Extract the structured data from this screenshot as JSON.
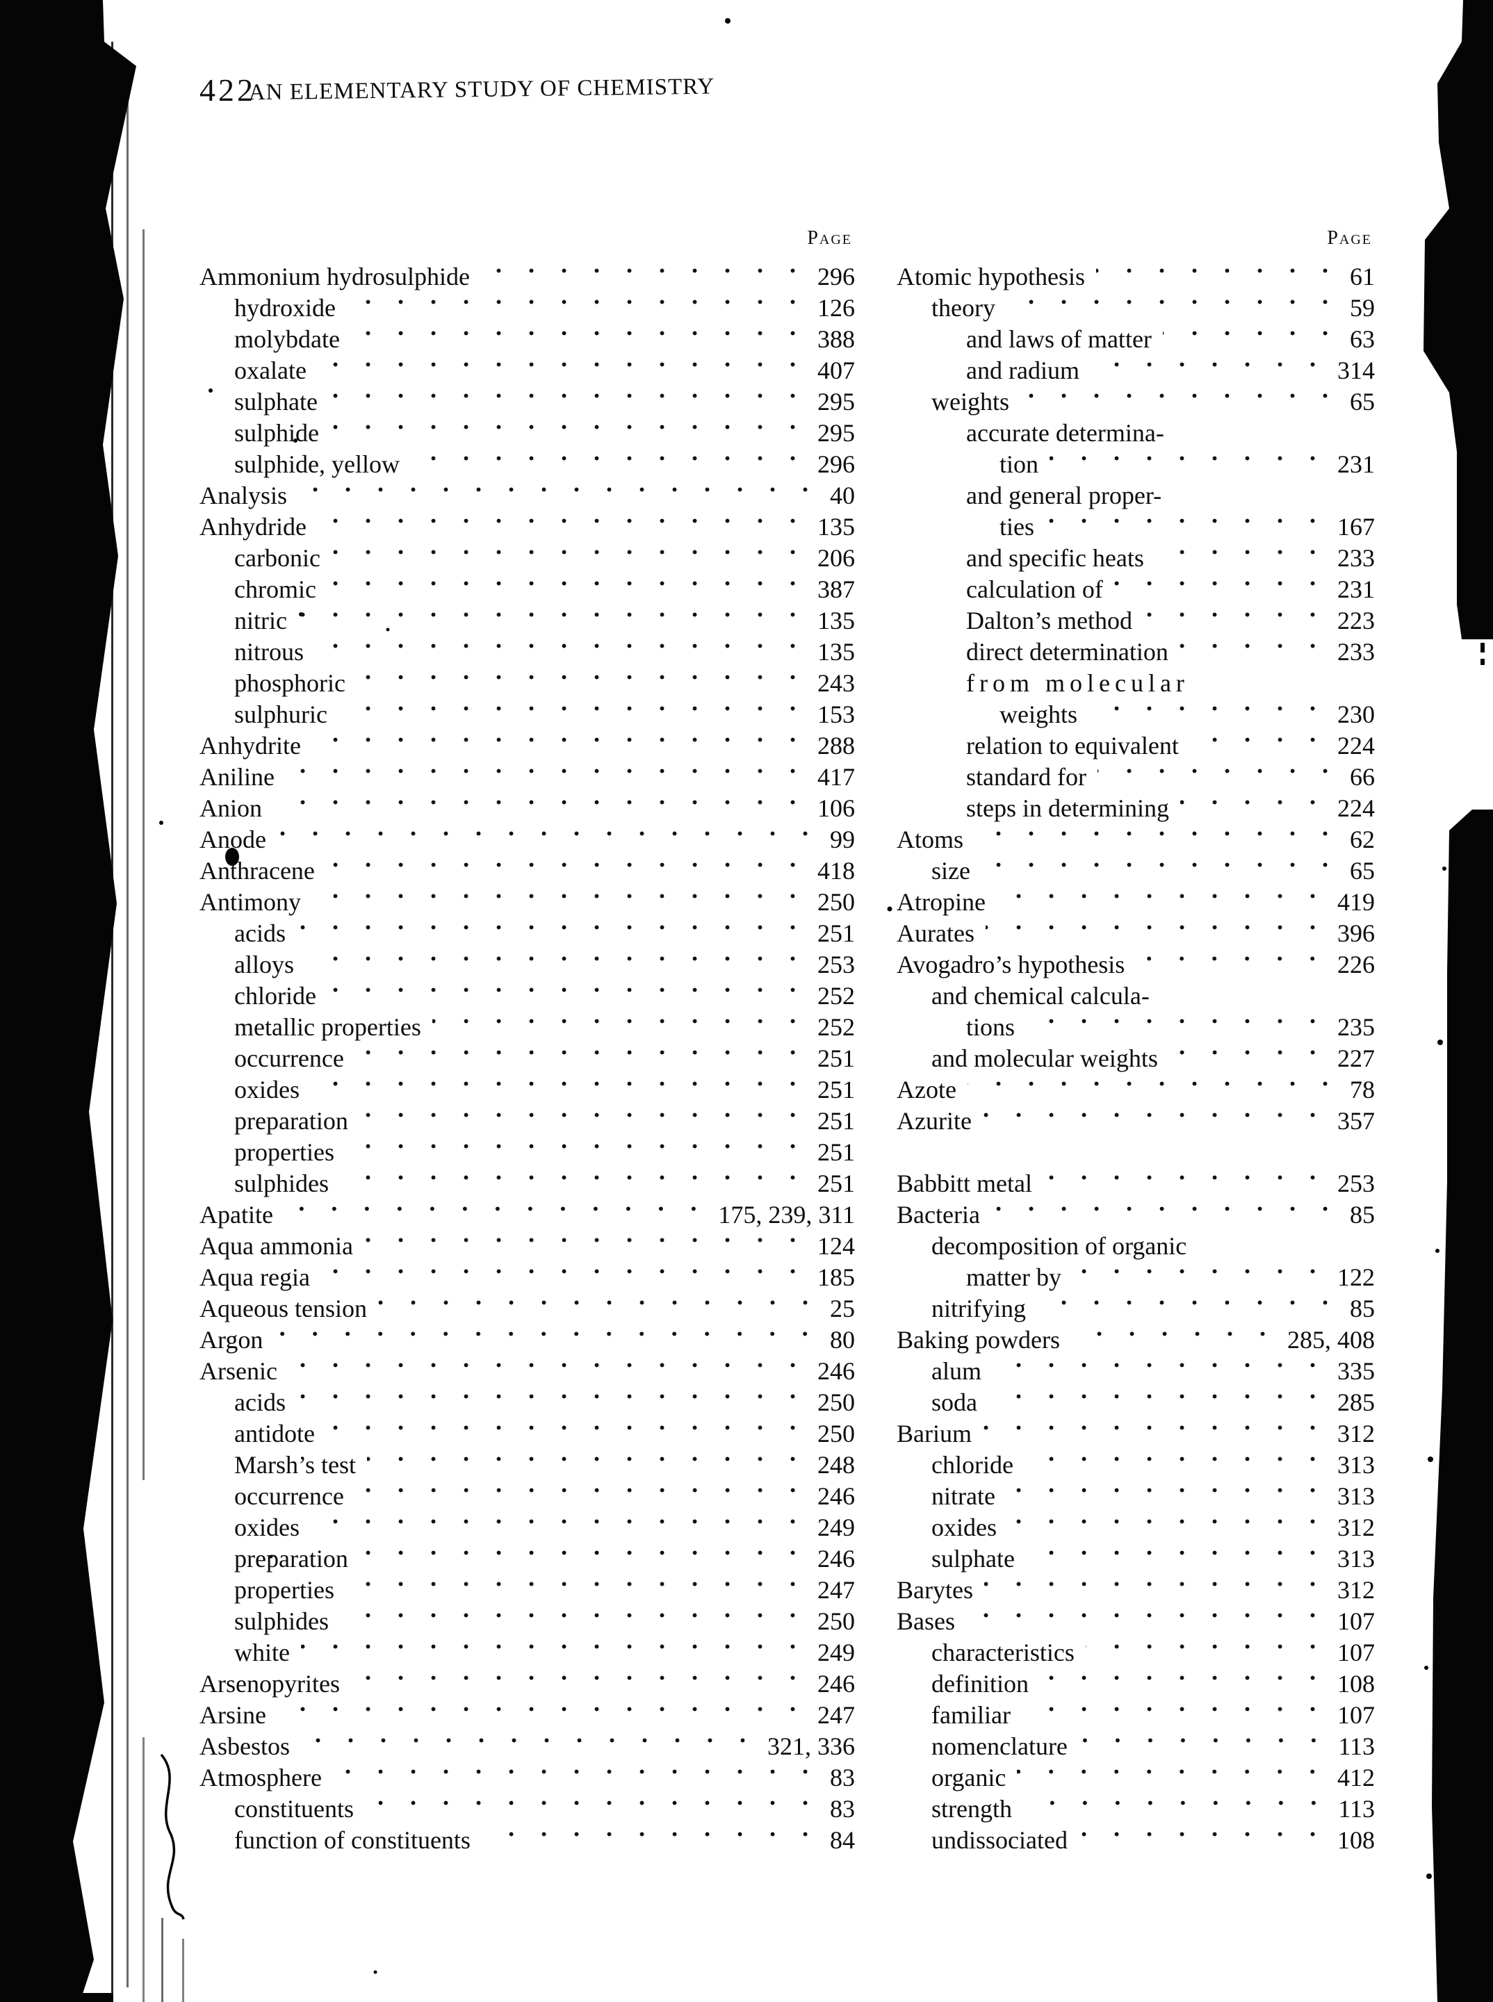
{
  "colors": {
    "ink": "#0d0d0d",
    "paper": "#ffffff"
  },
  "page": {
    "number": "422",
    "title": "AN ELEMENTARY STUDY OF CHEMISTRY"
  },
  "columns": [
    {
      "page_label": "Page",
      "entries": [
        {
          "label": "Ammonium hydrosulphide",
          "indent": 0,
          "page": "296"
        },
        {
          "label": "hydroxide",
          "indent": 1,
          "page": "126"
        },
        {
          "label": "molybdate",
          "indent": 1,
          "page": "388"
        },
        {
          "label": "oxalate",
          "indent": 1,
          "page": "407"
        },
        {
          "label": "sulphate",
          "indent": 1,
          "page": "295"
        },
        {
          "label": "sulphide",
          "indent": 1,
          "page": "295"
        },
        {
          "label": "sulphide, yellow",
          "indent": 1,
          "page": "296"
        },
        {
          "label": "Analysis",
          "indent": 0,
          "page": "40"
        },
        {
          "label": "Anhydride",
          "indent": 0,
          "page": "135"
        },
        {
          "label": "carbonic",
          "indent": 1,
          "page": "206"
        },
        {
          "label": "chromic",
          "indent": 1,
          "page": "387"
        },
        {
          "label": "nitric",
          "indent": 1,
          "page": "135"
        },
        {
          "label": "nitrous",
          "indent": 1,
          "page": "135"
        },
        {
          "label": "phosphoric",
          "indent": 1,
          "page": "243"
        },
        {
          "label": "sulphuric",
          "indent": 1,
          "page": "153"
        },
        {
          "label": "Anhydrite",
          "indent": 0,
          "page": "288"
        },
        {
          "label": "Aniline",
          "indent": 0,
          "page": "417"
        },
        {
          "label": "Anion",
          "indent": 0,
          "page": "106"
        },
        {
          "label": "Anode",
          "indent": 0,
          "page": "99"
        },
        {
          "label": "Anthracene",
          "indent": 0,
          "page": "418"
        },
        {
          "label": "Antimony",
          "indent": 0,
          "page": "250"
        },
        {
          "label": "acids",
          "indent": 1,
          "page": "251"
        },
        {
          "label": "alloys",
          "indent": 1,
          "page": "253"
        },
        {
          "label": "chloride",
          "indent": 1,
          "page": "252"
        },
        {
          "label": "metallic properties",
          "indent": 1,
          "page": "252"
        },
        {
          "label": "occurrence",
          "indent": 1,
          "page": "251"
        },
        {
          "label": "oxides",
          "indent": 1,
          "page": "251"
        },
        {
          "label": "preparation",
          "indent": 1,
          "page": "251"
        },
        {
          "label": "properties",
          "indent": 1,
          "page": "251"
        },
        {
          "label": "sulphides",
          "indent": 1,
          "page": "251"
        },
        {
          "label": "Apatite",
          "indent": 0,
          "page": "175, 239, 311"
        },
        {
          "label": "Aqua ammonia",
          "indent": 0,
          "page": "124"
        },
        {
          "label": "Aqua regia",
          "indent": 0,
          "page": "185"
        },
        {
          "label": "Aqueous tension",
          "indent": 0,
          "page": "25"
        },
        {
          "label": "Argon",
          "indent": 0,
          "page": "80"
        },
        {
          "label": "Arsenic",
          "indent": 0,
          "page": "246"
        },
        {
          "label": "acids",
          "indent": 1,
          "page": "250"
        },
        {
          "label": "antidote",
          "indent": 1,
          "page": "250"
        },
        {
          "label": "Marsh’s test",
          "indent": 1,
          "page": "248"
        },
        {
          "label": "occurrence",
          "indent": 1,
          "page": "246"
        },
        {
          "label": "oxides",
          "indent": 1,
          "page": "249"
        },
        {
          "label": "preparation",
          "indent": 1,
          "page": "246"
        },
        {
          "label": "properties",
          "indent": 1,
          "page": "247"
        },
        {
          "label": "sulphides",
          "indent": 1,
          "page": "250"
        },
        {
          "label": "white",
          "indent": 1,
          "page": "249"
        },
        {
          "label": "Arsenopyrites",
          "indent": 0,
          "page": "246"
        },
        {
          "label": "Arsine",
          "indent": 0,
          "page": "247"
        },
        {
          "label": "Asbestos",
          "indent": 0,
          "page": "321, 336"
        },
        {
          "label": "Atmosphere",
          "indent": 0,
          "page": "83"
        },
        {
          "label": "constituents",
          "indent": 1,
          "page": "83"
        },
        {
          "label": "function of constituents",
          "indent": 1,
          "page": "84"
        }
      ]
    },
    {
      "page_label": "Page",
      "entries": [
        {
          "label": "Atomic hypothesis",
          "indent": 0,
          "page": "61"
        },
        {
          "label": "theory",
          "indent": 1,
          "page": "59"
        },
        {
          "label": "and laws of matter",
          "indent": 2,
          "page": "63"
        },
        {
          "label": "and radium",
          "indent": 2,
          "page": "314"
        },
        {
          "label": "weights",
          "indent": 1,
          "page": "65"
        },
        {
          "label": "accurate determina-",
          "indent": 2,
          "page": "",
          "leader": false
        },
        {
          "label": "tion",
          "indent": 3,
          "page": "231"
        },
        {
          "label": "and general proper-",
          "indent": 2,
          "page": "",
          "leader": false
        },
        {
          "label": "ties",
          "indent": 3,
          "page": "167"
        },
        {
          "label": "and specific heats",
          "indent": 2,
          "page": "233"
        },
        {
          "label": "calculation of",
          "indent": 2,
          "page": "231"
        },
        {
          "label": "Dalton’s method",
          "indent": 2,
          "page": "223"
        },
        {
          "label": "direct determination",
          "indent": 2,
          "page": "233"
        },
        {
          "label": "from molecular",
          "indent": 2,
          "page": "",
          "leader": false,
          "ls": true
        },
        {
          "label": "weights",
          "indent": 3,
          "page": "230"
        },
        {
          "label": "relation to equivalent",
          "indent": 2,
          "page": "224"
        },
        {
          "label": "standard for",
          "indent": 2,
          "page": "66"
        },
        {
          "label": "steps in determining",
          "indent": 2,
          "page": "224"
        },
        {
          "label": "Atoms",
          "indent": 0,
          "page": "62"
        },
        {
          "label": "size",
          "indent": 1,
          "page": "65"
        },
        {
          "label": "Atropine",
          "indent": 0,
          "page": "419"
        },
        {
          "label": "Aurates",
          "indent": 0,
          "page": "396"
        },
        {
          "label": "Avogadro’s hypothesis",
          "indent": 0,
          "page": "226"
        },
        {
          "label": "and chemical calcula-",
          "indent": 1,
          "page": "",
          "leader": false
        },
        {
          "label": "tions",
          "indent": 2,
          "page": "235"
        },
        {
          "label": "and molecular weights",
          "indent": 1,
          "page": "227"
        },
        {
          "label": "Azote",
          "indent": 0,
          "page": "78"
        },
        {
          "label": "Azurite",
          "indent": 0,
          "page": "357"
        },
        {
          "label": "",
          "indent": 0,
          "page": "",
          "spacer": true
        },
        {
          "label": "Babbitt metal",
          "indent": 0,
          "page": "253"
        },
        {
          "label": "Bacteria",
          "indent": 0,
          "page": "85"
        },
        {
          "label": "decomposition of organic",
          "indent": 1,
          "page": "",
          "leader": false
        },
        {
          "label": "matter by",
          "indent": 2,
          "page": "122"
        },
        {
          "label": "nitrifying",
          "indent": 1,
          "page": "85"
        },
        {
          "label": "Baking powders",
          "indent": 0,
          "page": "285, 408"
        },
        {
          "label": "alum",
          "indent": 1,
          "page": "335"
        },
        {
          "label": "soda",
          "indent": 1,
          "page": "285"
        },
        {
          "label": "Barium",
          "indent": 0,
          "page": "312"
        },
        {
          "label": "chloride",
          "indent": 1,
          "page": "313"
        },
        {
          "label": "nitrate",
          "indent": 1,
          "page": "313"
        },
        {
          "label": "oxides",
          "indent": 1,
          "page": "312"
        },
        {
          "label": "sulphate",
          "indent": 1,
          "page": "313"
        },
        {
          "label": "Barytes",
          "indent": 0,
          "page": "312"
        },
        {
          "label": "Bases",
          "indent": 0,
          "page": "107"
        },
        {
          "label": "characteristics",
          "indent": 1,
          "page": "107"
        },
        {
          "label": "definition",
          "indent": 1,
          "page": "108"
        },
        {
          "label": "familiar",
          "indent": 1,
          "page": "107"
        },
        {
          "label": "nomenclature",
          "indent": 1,
          "page": "113"
        },
        {
          "label": "organic",
          "indent": 1,
          "page": "412"
        },
        {
          "label": "strength",
          "indent": 1,
          "page": "113"
        },
        {
          "label": "undissociated",
          "indent": 1,
          "page": "108"
        }
      ]
    }
  ]
}
